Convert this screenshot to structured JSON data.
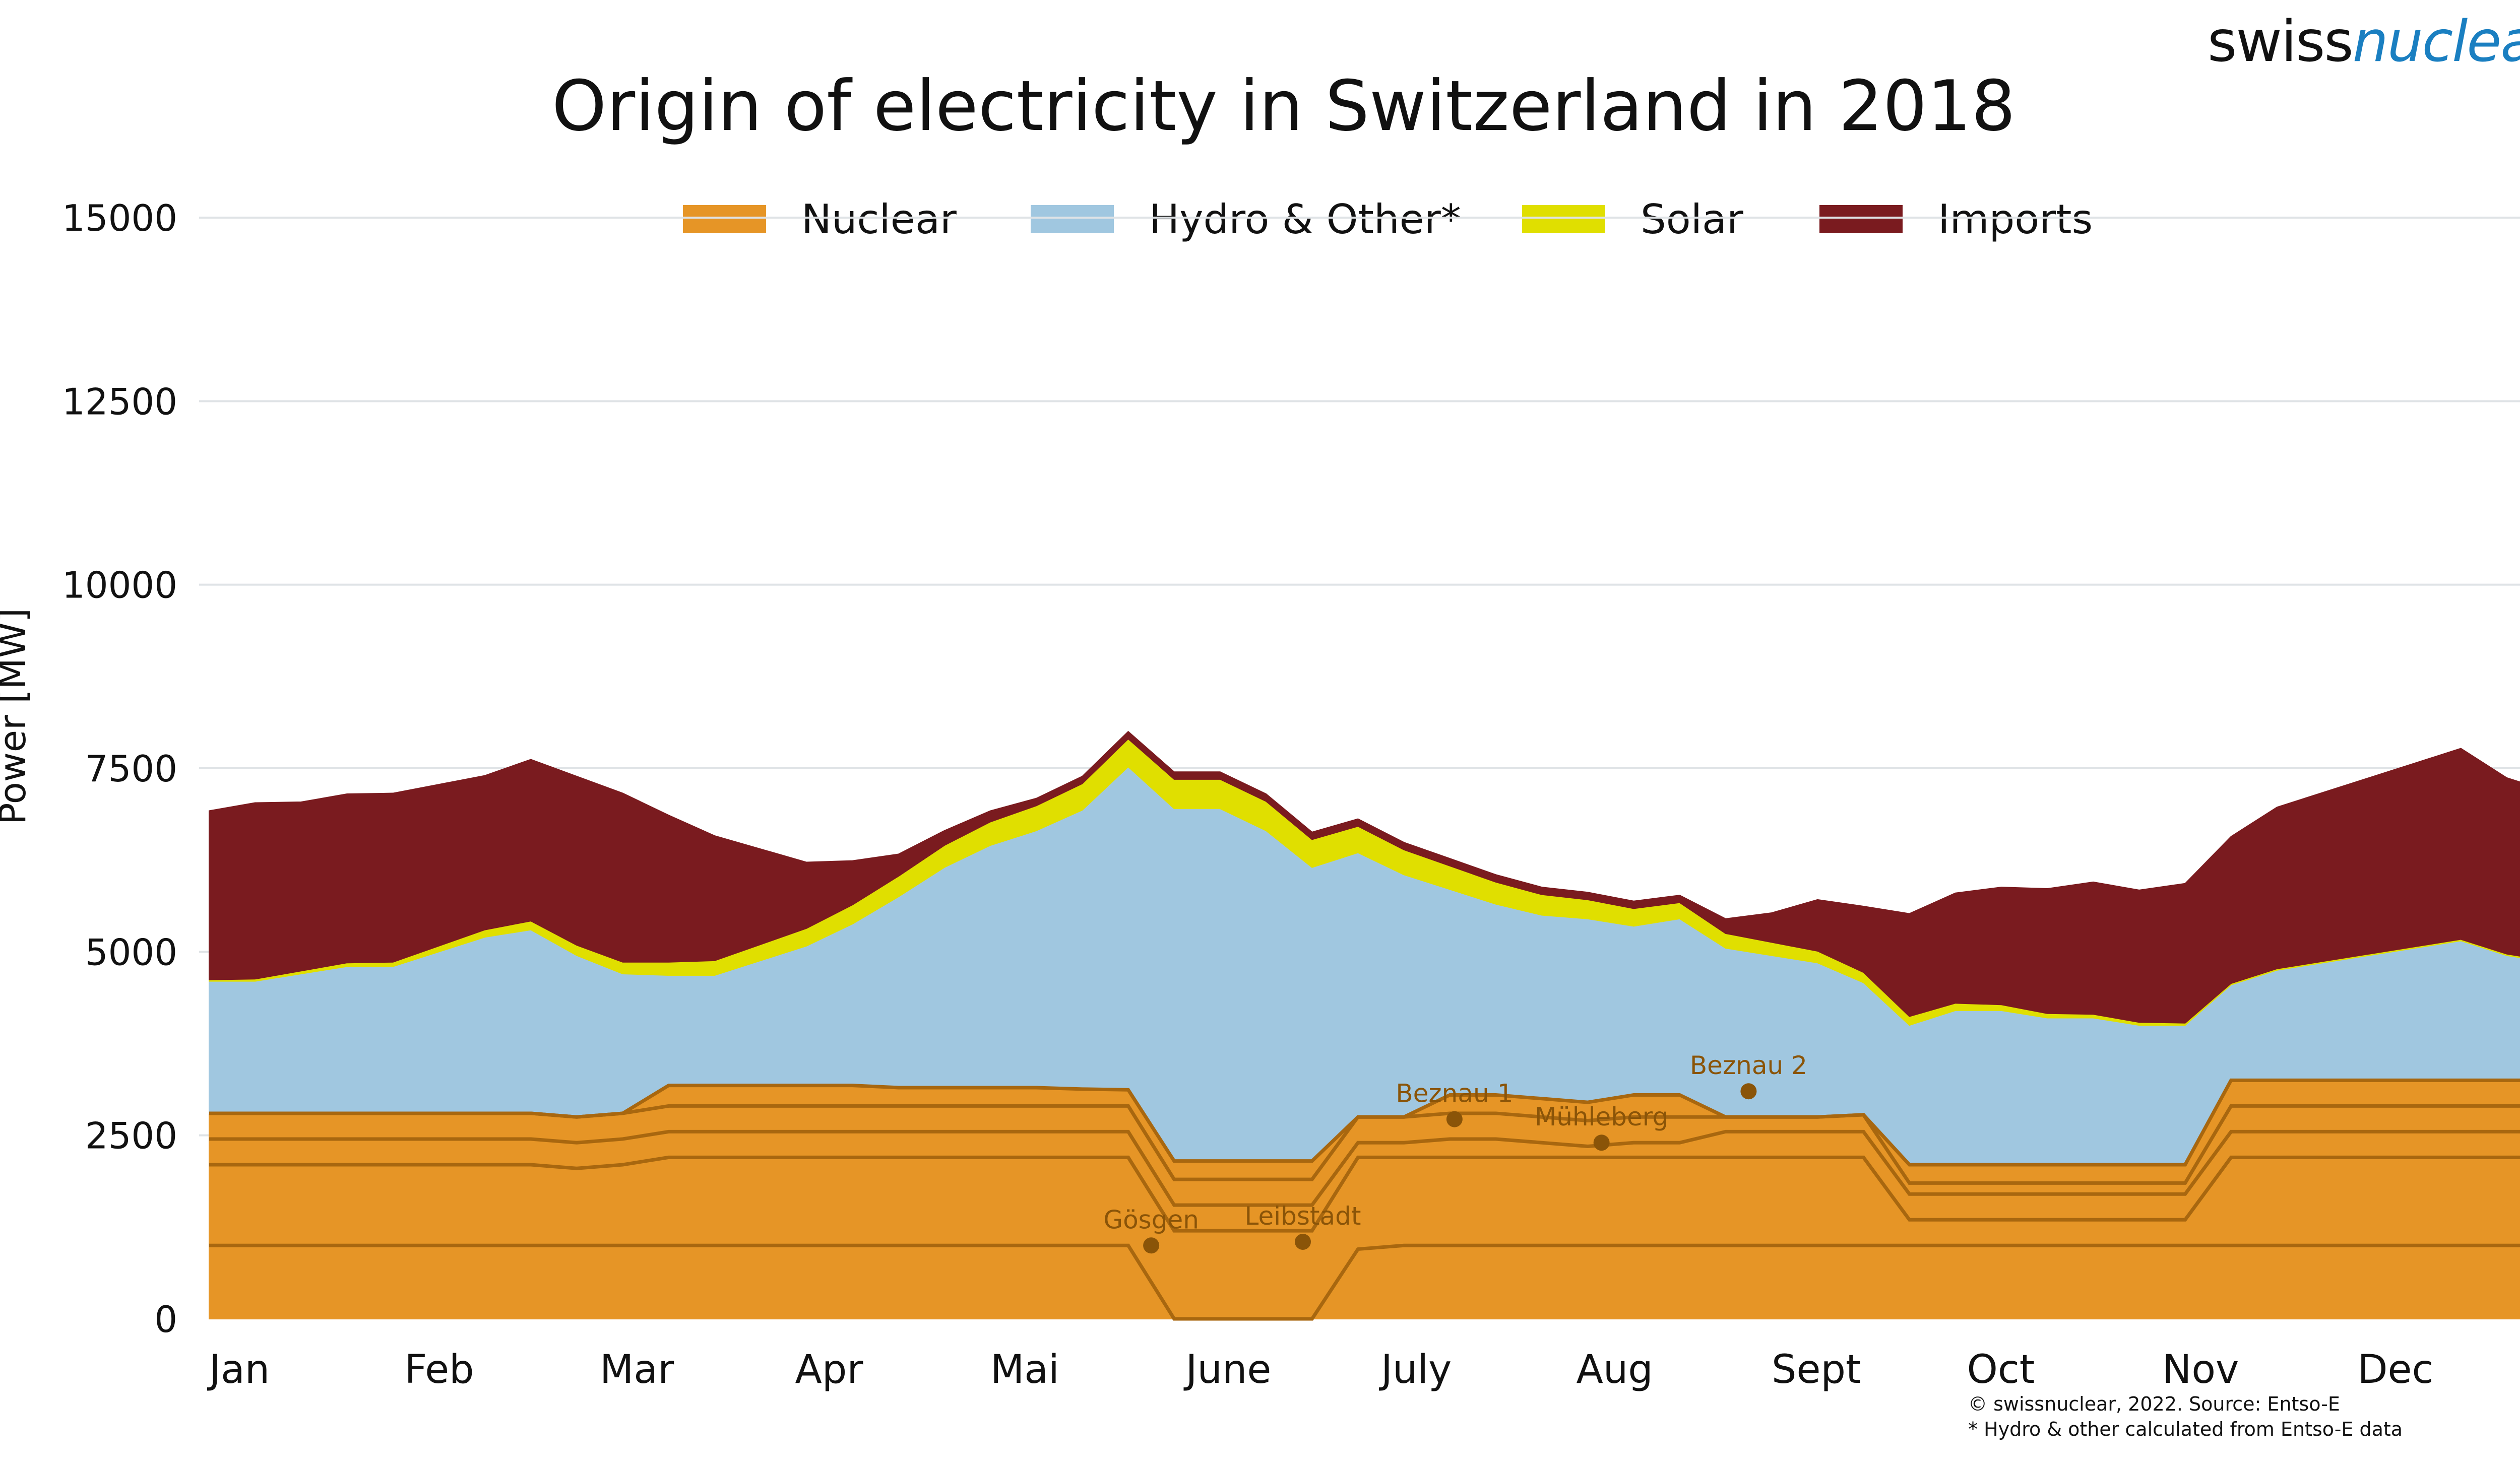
{
  "brand": {
    "part1": "swiss",
    "part2": "nuclear",
    "color2": "#1a7fc1"
  },
  "title": "Origin of electricity in Switzerland in 2018",
  "notes": [
    "© swissnuclear, 2022. Source: Entso-E",
    "* Hydro & other calculated from Entso-E data"
  ],
  "legend": [
    {
      "label": "Nuclear",
      "color": "#e69526"
    },
    {
      "label": "Hydro & Other*",
      "color": "#a0c7e0"
    },
    {
      "label": "Solar",
      "color": "#e0df00"
    },
    {
      "label": "Imports",
      "color": "#7a1b1f"
    }
  ],
  "chart_data": {
    "type": "area",
    "title": "Origin of electricity in Switzerland in 2018",
    "ylabel": "Power [MW]",
    "xlabel": "",
    "ylim": [
      0,
      15000
    ],
    "yticks": [
      0,
      2500,
      5000,
      7500,
      10000,
      12500,
      15000
    ],
    "x_months": [
      "Jan",
      "Feb",
      "Mar",
      "Apr",
      "Mai",
      "June",
      "July",
      "Aug",
      "Sept",
      "Oct",
      "Nov",
      "Dec"
    ],
    "grid": true,
    "legend_position": "top",
    "stacked": true,
    "series_order": [
      "Nuclear",
      "Hydro & Other*",
      "Solar",
      "Imports"
    ],
    "weekly_estimates": {
      "x_week": [
        1,
        2,
        3,
        4,
        5,
        6,
        7,
        8,
        9,
        10,
        11,
        12,
        13,
        14,
        15,
        16,
        17,
        18,
        19,
        20,
        21,
        22,
        23,
        24,
        25,
        26,
        27,
        28,
        29,
        30,
        31,
        32,
        33,
        34,
        35,
        36,
        37,
        38,
        39,
        40,
        41,
        42,
        43,
        44,
        45,
        46,
        47,
        48,
        49,
        50,
        51,
        52
      ],
      "Nuclear": [
        2800,
        2800,
        2800,
        2800,
        2800,
        2800,
        2800,
        2800,
        2750,
        2800,
        3180,
        3180,
        3180,
        3180,
        3180,
        3150,
        3150,
        3150,
        3150,
        3130,
        3120,
        2150,
        2150,
        2150,
        2150,
        2750,
        2750,
        3050,
        3050,
        3000,
        2950,
        3050,
        3050,
        2750,
        2750,
        2750,
        2780,
        2100,
        2100,
        2100,
        2100,
        2100,
        2100,
        2100,
        3250,
        3250,
        3250,
        3250,
        3250,
        3250,
        3250,
        3250
      ],
      "Hydro & Other*": [
        1800,
        1800,
        1900,
        2000,
        2000,
        2200,
        2400,
        2500,
        2200,
        1900,
        1500,
        1500,
        1700,
        1900,
        2200,
        2600,
        3000,
        3300,
        3500,
        3800,
        4400,
        4800,
        4800,
        4500,
        4000,
        3600,
        3300,
        2800,
        2600,
        2500,
        2500,
        2300,
        2400,
        2300,
        2200,
        2100,
        1800,
        1900,
        2100,
        2100,
        2000,
        2000,
        1900,
        1900,
        1300,
        1500,
        1600,
        1700,
        1800,
        1900,
        1700,
        1600
      ],
      "Solar": [
        20,
        30,
        40,
        50,
        60,
        80,
        100,
        120,
        140,
        160,
        180,
        200,
        220,
        240,
        260,
        280,
        300,
        320,
        340,
        360,
        380,
        400,
        400,
        400,
        380,
        360,
        340,
        320,
        300,
        280,
        260,
        240,
        220,
        200,
        180,
        160,
        140,
        120,
        100,
        80,
        60,
        50,
        40,
        30,
        20,
        20,
        20,
        20,
        20,
        20,
        20,
        20
      ],
      "Imports": [
        2300,
        2400,
        2300,
        2300,
        2300,
        2200,
        2100,
        2200,
        2300,
        2300,
        2000,
        1700,
        1300,
        900,
        600,
        300,
        200,
        150,
        100,
        100,
        100,
        100,
        100,
        100,
        100,
        100,
        100,
        100,
        100,
        100,
        100,
        100,
        100,
        200,
        400,
        700,
        900,
        1400,
        1500,
        1600,
        1700,
        1800,
        1800,
        1900,
        2000,
        2200,
        2300,
        2400,
        2500,
        2600,
        2400,
        2300
      ]
    },
    "nuclear_units_stack_order": [
      "Gösgen",
      "Leibstadt",
      "Beznau 1",
      "Mühleberg",
      "Beznau 2"
    ],
    "nuclear_boundaries_weekly": [
      [
        1000,
        1000,
        1000,
        1000,
        1000,
        1000,
        1000,
        1000,
        1000,
        1000,
        1000,
        1000,
        1000,
        1000,
        1000,
        1000,
        1000,
        1000,
        1000,
        1000,
        1000,
        0,
        0,
        0,
        0,
        950,
        1000,
        1000,
        1000,
        1000,
        1000,
        1000,
        1000,
        1000,
        1000,
        1000,
        1000,
        1000,
        1000,
        1000,
        1000,
        1000,
        1000,
        1000,
        1000,
        1000,
        1000,
        1000,
        1000,
        1000,
        1000,
        1000
      ],
      [
        2100,
        2100,
        2100,
        2100,
        2100,
        2100,
        2100,
        2100,
        2050,
        2100,
        2200,
        2200,
        2200,
        2200,
        2200,
        2200,
        2200,
        2200,
        2200,
        2200,
        2200,
        1200,
        1200,
        1200,
        1200,
        2200,
        2200,
        2200,
        2200,
        2200,
        2200,
        2200,
        2200,
        2200,
        2200,
        2200,
        2200,
        1350,
        1350,
        1350,
        1350,
        1350,
        1350,
        1350,
        2200,
        2200,
        2200,
        2200,
        2200,
        2200,
        2200,
        2200
      ],
      [
        2450,
        2450,
        2450,
        2450,
        2450,
        2450,
        2450,
        2450,
        2400,
        2450,
        2550,
        2550,
        2550,
        2550,
        2550,
        2550,
        2550,
        2550,
        2550,
        2550,
        2550,
        1550,
        1550,
        1550,
        1550,
        2400,
        2400,
        2450,
        2450,
        2400,
        2350,
        2400,
        2400,
        2550,
        2550,
        2550,
        2550,
        1700,
        1700,
        1700,
        1700,
        1700,
        1700,
        1700,
        2550,
        2550,
        2550,
        2550,
        2550,
        2550,
        2550,
        2550
      ],
      [
        2800,
        2800,
        2800,
        2800,
        2800,
        2800,
        2800,
        2800,
        2750,
        2800,
        2900,
        2900,
        2900,
        2900,
        2900,
        2900,
        2900,
        2900,
        2900,
        2900,
        2900,
        1900,
        1900,
        1900,
        1900,
        2750,
        2750,
        2800,
        2800,
        2750,
        2700,
        2750,
        2750,
        2750,
        2750,
        2750,
        2780,
        1850,
        1850,
        1850,
        1850,
        1850,
        1850,
        1850,
        2900,
        2900,
        2900,
        2900,
        2900,
        2900,
        2900,
        2900
      ],
      [
        2800,
        2800,
        2800,
        2800,
        2800,
        2800,
        2800,
        2800,
        2750,
        2800,
        3180,
        3180,
        3180,
        3180,
        3180,
        3150,
        3150,
        3150,
        3150,
        3130,
        3120,
        2150,
        2150,
        2150,
        2150,
        2750,
        2750,
        3050,
        3050,
        3000,
        2950,
        3050,
        3050,
        2750,
        2750,
        2750,
        2780,
        2100,
        2100,
        2100,
        2100,
        2100,
        2100,
        2100,
        3250,
        3250,
        3250,
        3250,
        3250,
        3250,
        3250,
        3250
      ]
    ],
    "annotations": [
      {
        "label": "Gösgen",
        "x_week": 21.5,
        "y": 1000
      },
      {
        "label": "Leibstadt",
        "x_week": 24.8,
        "y": 1050
      },
      {
        "label": "Beznau 1",
        "x_week": 28.1,
        "y": 2720
      },
      {
        "label": "Mühleberg",
        "x_week": 31.3,
        "y": 2400
      },
      {
        "label": "Beznau 2",
        "x_week": 34.5,
        "y": 3100
      }
    ]
  }
}
